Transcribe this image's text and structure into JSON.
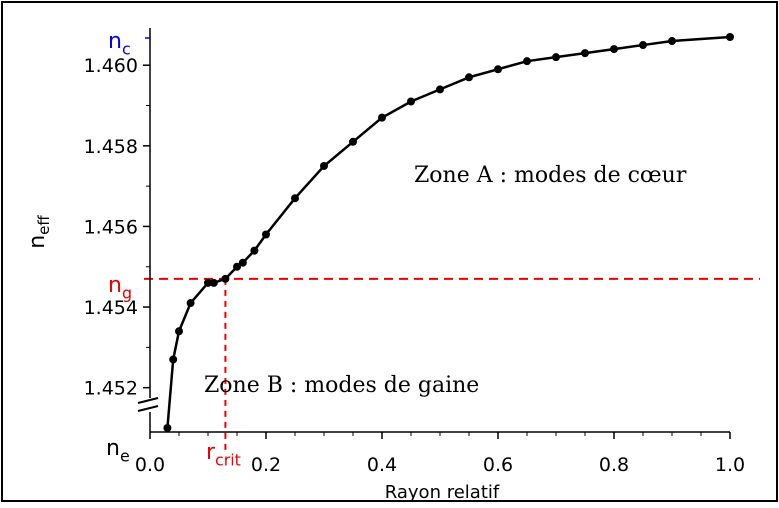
{
  "chart_data": {
    "type": "line",
    "xlabel": "Rayon relatif",
    "ylabel": {
      "main": "n",
      "sub": "eff"
    },
    "xlim": [
      0.0,
      1.0
    ],
    "ylim": [
      1.4509,
      1.4607
    ],
    "x_ticks": [
      "0.0",
      "0.2",
      "0.4",
      "0.6",
      "0.8",
      "1.0"
    ],
    "y_ticks": [
      "1.452",
      "1.454",
      "1.456",
      "1.458",
      "1.460"
    ],
    "series": [
      {
        "x": [
          0.03,
          0.04,
          0.05,
          0.07,
          0.1,
          0.11,
          0.13,
          0.15,
          0.16,
          0.18,
          0.2,
          0.25,
          0.3,
          0.35,
          0.4,
          0.45,
          0.5,
          0.55,
          0.6,
          0.65,
          0.7,
          0.75,
          0.8,
          0.85,
          0.9,
          1.0
        ],
        "y": [
          1.451,
          1.4527,
          1.4534,
          1.4541,
          1.4546,
          1.4546,
          1.4547,
          1.455,
          1.4551,
          1.4554,
          1.4558,
          1.4567,
          1.4575,
          1.4581,
          1.4587,
          1.4591,
          1.4594,
          1.4597,
          1.4599,
          1.4601,
          1.4602,
          1.4603,
          1.4604,
          1.4605,
          1.4606,
          1.4607
        ]
      }
    ],
    "n_g": 1.4547,
    "r_crit": 0.13,
    "axis_break": true,
    "annotations": {
      "nc": {
        "main": "n",
        "sub": "c",
        "color": "#0000ee"
      },
      "ng": {
        "main": "n",
        "sub": "g",
        "color": "#ee0000"
      },
      "ne": {
        "main": "n",
        "sub": "e",
        "color": "#000000"
      },
      "rcrit": {
        "main": "r",
        "sub": "crit",
        "color": "#ee0000"
      },
      "zoneA": "Zone A : modes de cœur",
      "zoneB": "Zone B : modes de gaine"
    },
    "colors": {
      "curve": "#000000",
      "guide": "#ee0000"
    }
  }
}
